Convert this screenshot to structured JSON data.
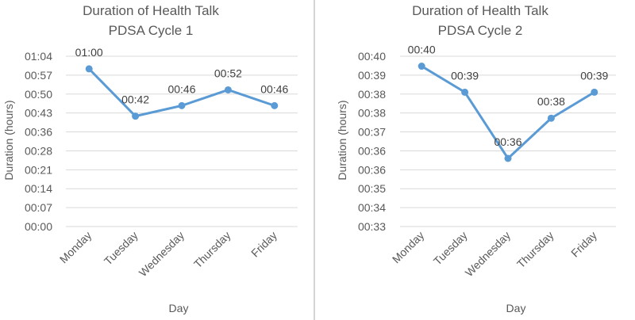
{
  "chart_data": [
    {
      "type": "line",
      "title": "Duration of Health Talk",
      "subtitle": "PDSA Cycle 1",
      "xlabel": "Day",
      "ylabel": "Duration (hours)",
      "categories": [
        "Monday",
        "Tuesday",
        "Wednesday",
        "Thursday",
        "Friday"
      ],
      "y_ticks": [
        "00:00",
        "00:07",
        "00:14",
        "00:21",
        "00:28",
        "00:36",
        "00:43",
        "00:50",
        "00:57",
        "01:04"
      ],
      "ylim": [
        0,
        64.8
      ],
      "values": [
        60,
        42,
        46,
        52,
        46
      ],
      "data_labels": [
        "01:00",
        "00:42",
        "00:46",
        "00:52",
        "00:46"
      ],
      "color": "#5b9bd5",
      "grid": true,
      "legend": "none"
    },
    {
      "type": "line",
      "title": "Duration of Health Talk",
      "subtitle": "PDSA Cycle 2",
      "xlabel": "Day",
      "ylabel": "Duration (hours)",
      "categories": [
        "Monday",
        "Tuesday",
        "Wednesday",
        "Thursday",
        "Friday"
      ],
      "y_ticks": [
        "00:33",
        "00:34",
        "00:35",
        "00:36",
        "00:36",
        "00:37",
        "00:38",
        "00:38",
        "00:39",
        "00:40"
      ],
      "ylim": [
        33.12,
        40.32
      ],
      "values": [
        39.9,
        38.8,
        36.0,
        37.7,
        38.8
      ],
      "data_labels": [
        "00:40",
        "00:39",
        "00:36",
        "00:38",
        "00:39"
      ],
      "color": "#5b9bd5",
      "grid": true,
      "legend": "none"
    }
  ]
}
